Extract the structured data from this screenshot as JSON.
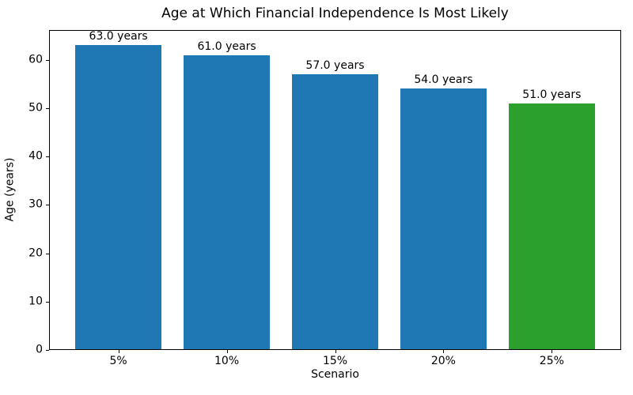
{
  "chart_data": {
    "type": "bar",
    "title": "Age at Which Financial Independence Is Most Likely",
    "xlabel": "Scenario",
    "ylabel": "Age (years)",
    "categories": [
      "5%",
      "10%",
      "15%",
      "20%",
      "25%"
    ],
    "values": [
      63.0,
      61.0,
      57.0,
      54.0,
      51.0
    ],
    "bar_labels": [
      "63.0 years",
      "61.0 years",
      "57.0 years",
      "54.0 years",
      "51.0 years"
    ],
    "bar_colors": [
      "#1f77b4",
      "#1f77b4",
      "#1f77b4",
      "#1f77b4",
      "#2ca02c"
    ],
    "ylim": [
      0,
      66.15
    ],
    "yticks": [
      0,
      10,
      20,
      30,
      40,
      50,
      60
    ],
    "grid": false,
    "legend": "none",
    "bar_width_fraction": 0.8,
    "x_margin_units": 0.24,
    "frame_color": "#000000",
    "background_color": "#ffffff",
    "text_color": "#000000"
  }
}
